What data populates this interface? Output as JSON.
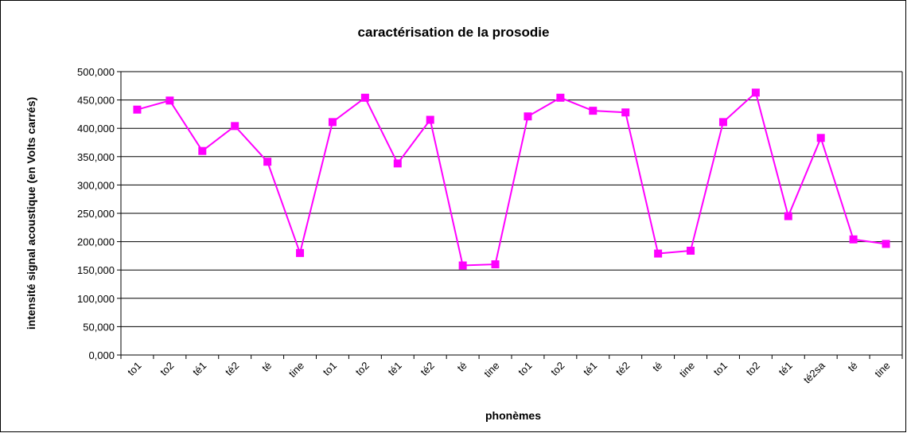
{
  "chart_data": {
    "type": "line",
    "title": "caractérisation de la prosodie",
    "x_label": "phonèmes",
    "y_label": "intensité signal acoustique (en Volts carrés)",
    "categories": [
      "to1",
      "to2",
      "té1",
      "té2",
      "té",
      "tine",
      "to1",
      "to2",
      "té1",
      "té2",
      "té",
      "tine",
      "to1",
      "to2",
      "té1",
      "té2",
      "té",
      "tine",
      "to1",
      "to2",
      "té1",
      "té2sa",
      "té",
      "tine"
    ],
    "series": [
      {
        "color": "#ff00ff",
        "values": [
          433000,
          449000,
          360000,
          404000,
          341000,
          180000,
          411000,
          454000,
          338000,
          415000,
          158000,
          160000,
          421000,
          454000,
          431000,
          428000,
          179000,
          184000,
          411000,
          463000,
          245000,
          383000,
          204000,
          196000
        ]
      }
    ],
    "ylim": [
      0,
      500000
    ],
    "yticks": [
      {
        "value": 0,
        "label": "0,000"
      },
      {
        "value": 50000,
        "label": "50,000"
      },
      {
        "value": 100000,
        "label": "100,000"
      },
      {
        "value": 150000,
        "label": "150,000"
      },
      {
        "value": 200000,
        "label": "200,000"
      },
      {
        "value": 250000,
        "label": "250,000"
      },
      {
        "value": 300000,
        "label": "300,000"
      },
      {
        "value": 350000,
        "label": "350,000"
      },
      {
        "value": 400000,
        "label": "400,000"
      },
      {
        "value": 450000,
        "label": "450,000"
      },
      {
        "value": 500000,
        "label": "500,000"
      }
    ],
    "grid": true
  }
}
